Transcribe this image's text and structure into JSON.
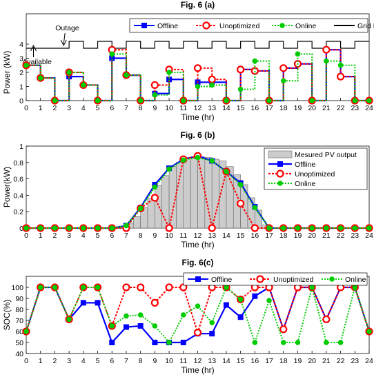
{
  "chart_data": [
    {
      "type": "line",
      "title": "Fig. 6 (a)",
      "xlabel": "Time (hr)",
      "ylabel": "Power (kW)",
      "xlim": [
        0,
        24
      ],
      "ylim": [
        0,
        4
      ],
      "xticks": [
        0,
        1,
        2,
        3,
        4,
        5,
        6,
        7,
        8,
        9,
        10,
        11,
        12,
        13,
        14,
        15,
        16,
        17,
        18,
        19,
        20,
        21,
        22,
        23,
        24
      ],
      "yticks": [
        0,
        1,
        2,
        3,
        4
      ],
      "legend_position": "top-right",
      "annotations": [
        {
          "text": "Outage",
          "x": 3.1
        },
        {
          "text": "Available",
          "x": 0.7
        }
      ],
      "series": [
        {
          "name": "Offline",
          "color": "#0000ff",
          "x": [
            0,
            1,
            2,
            3,
            4,
            5,
            6,
            7,
            8,
            9,
            10,
            11,
            12,
            13,
            14,
            15,
            16,
            17,
            18,
            19,
            20,
            21,
            22,
            23,
            24
          ],
          "values": [
            2.5,
            1.6,
            0,
            1.7,
            1.1,
            0,
            3.0,
            1.8,
            0,
            0.5,
            1.5,
            0,
            1.3,
            1.3,
            0,
            2.2,
            2.1,
            0,
            2.3,
            2.6,
            0,
            3.6,
            1.7,
            0,
            0
          ]
        },
        {
          "name": "Unoptimized",
          "color": "#ff0000",
          "x": [
            0,
            1,
            2,
            3,
            4,
            5,
            6,
            7,
            8,
            9,
            10,
            11,
            12,
            13,
            14,
            15,
            16,
            17,
            18,
            19,
            20,
            21,
            22,
            23,
            24
          ],
          "values": [
            2.5,
            1.6,
            0,
            2.0,
            1.1,
            0,
            3.6,
            1.8,
            0,
            1.1,
            2.2,
            0,
            2.3,
            1.5,
            0,
            2.2,
            2.1,
            0,
            2.3,
            2.6,
            0,
            3.6,
            1.7,
            0,
            0
          ]
        },
        {
          "name": "Online",
          "color": "#00cc00",
          "x": [
            0,
            1,
            2,
            3,
            4,
            5,
            6,
            7,
            8,
            9,
            10,
            11,
            12,
            13,
            14,
            15,
            16,
            17,
            18,
            19,
            20,
            21,
            22,
            23,
            24
          ],
          "values": [
            2.5,
            1.6,
            0,
            2.0,
            1.1,
            0,
            3.3,
            1.8,
            0,
            0.4,
            2.0,
            0,
            1.0,
            1.1,
            0,
            0.8,
            2.8,
            0,
            1.4,
            3.3,
            0,
            2.8,
            2.5,
            0,
            0
          ]
        }
      ],
      "grid_pattern": {
        "name": "Grid Pattern",
        "color": "#000000",
        "states": [
          0,
          0,
          0,
          1,
          0,
          1,
          0,
          1,
          0,
          1,
          0,
          1,
          0,
          1,
          0,
          1,
          0,
          1,
          0,
          1,
          0,
          1,
          0,
          1
        ]
      }
    },
    {
      "type": "line",
      "title": "Fig. 6 (b)",
      "xlabel": "Time (hr)",
      "ylabel": "Power(kW)",
      "xlim": [
        0,
        24
      ],
      "ylim": [
        0,
        1
      ],
      "xticks": [
        0,
        1,
        2,
        3,
        4,
        5,
        6,
        7,
        8,
        9,
        10,
        11,
        12,
        13,
        14,
        15,
        16,
        17,
        18,
        19,
        20,
        21,
        22,
        23,
        24
      ],
      "yticks": [
        0,
        0.2,
        0.4,
        0.6,
        0.8,
        1
      ],
      "legend_position": "top-right",
      "bars": {
        "name": "Mesured PV output",
        "color": "#cccccc",
        "x": [
          7,
          7.5,
          8,
          8.5,
          9,
          9.5,
          10,
          10.5,
          11,
          11.5,
          12,
          12.5,
          13,
          13.5,
          14,
          14.5,
          15,
          15.5,
          16,
          16.5
        ],
        "values": [
          0.06,
          0.14,
          0.25,
          0.36,
          0.52,
          0.64,
          0.75,
          0.8,
          0.82,
          0.85,
          0.87,
          0.86,
          0.84,
          0.82,
          0.75,
          0.65,
          0.53,
          0.37,
          0.22,
          0.04
        ]
      },
      "series": [
        {
          "name": "Offline",
          "color": "#0000ff",
          "x": [
            0,
            1,
            2,
            3,
            4,
            5,
            6,
            7,
            8,
            9,
            10,
            11,
            12,
            13,
            14,
            15,
            16,
            17,
            18,
            19,
            20,
            21,
            22,
            23,
            24
          ],
          "values": [
            0,
            0,
            0,
            0,
            0,
            0,
            0,
            0.03,
            0.25,
            0.53,
            0.73,
            0.84,
            0.88,
            0.82,
            0.69,
            0.55,
            0.26,
            0,
            0,
            0,
            0,
            0,
            0,
            0,
            0
          ]
        },
        {
          "name": "Unoptimized",
          "color": "#ff0000",
          "x": [
            0,
            1,
            2,
            3,
            4,
            5,
            6,
            7,
            8,
            9,
            10,
            11,
            12,
            13,
            14,
            15,
            16,
            17,
            18,
            19,
            20,
            21,
            22,
            23,
            24
          ],
          "values": [
            0,
            0,
            0,
            0,
            0,
            0,
            0,
            0,
            0.24,
            0.37,
            0,
            0.84,
            0.88,
            0,
            0.69,
            0.3,
            0,
            0,
            0,
            0,
            0,
            0,
            0,
            0,
            0
          ]
        },
        {
          "name": "Online",
          "color": "#00cc00",
          "x": [
            0,
            1,
            2,
            3,
            4,
            5,
            6,
            7,
            8,
            9,
            10,
            11,
            12,
            13,
            14,
            15,
            16,
            17,
            18,
            19,
            20,
            21,
            22,
            23,
            24
          ],
          "values": [
            0,
            0,
            0,
            0,
            0,
            0,
            0,
            0.03,
            0.24,
            0.5,
            0.72,
            0.83,
            0.86,
            0.82,
            0.69,
            0.53,
            0.25,
            0,
            0,
            0,
            0,
            0,
            0,
            0,
            0
          ]
        }
      ]
    },
    {
      "type": "line",
      "title": "Fig. 6(c)",
      "xlabel": "Time (hr)",
      "ylabel": "SOC(%)",
      "xlim": [
        0,
        24
      ],
      "ylim": [
        40,
        110
      ],
      "xticks": [
        0,
        1,
        2,
        3,
        4,
        5,
        6,
        7,
        8,
        9,
        10,
        11,
        12,
        13,
        14,
        15,
        16,
        17,
        18,
        19,
        20,
        21,
        22,
        23,
        24
      ],
      "yticks": [
        40,
        50,
        60,
        70,
        80,
        90,
        100
      ],
      "legend_position": "top",
      "series": [
        {
          "name": "Offline",
          "color": "#0000ff",
          "x": [
            0,
            1,
            2,
            3,
            4,
            5,
            6,
            7,
            8,
            9,
            10,
            11,
            12,
            13,
            14,
            15,
            16,
            17,
            18,
            19,
            20,
            21,
            22,
            23,
            24
          ],
          "values": [
            60,
            100,
            100,
            71,
            86,
            86,
            50,
            64,
            65,
            50,
            50,
            50,
            58,
            58,
            84,
            73,
            92,
            100,
            62,
            100,
            100,
            71,
            100,
            100,
            60
          ]
        },
        {
          "name": "Unoptimized",
          "color": "#ff0000",
          "x": [
            0,
            1,
            2,
            3,
            4,
            5,
            6,
            7,
            8,
            9,
            10,
            11,
            12,
            13,
            14,
            15,
            16,
            17,
            18,
            19,
            20,
            21,
            22,
            23,
            24
          ],
          "values": [
            60,
            100,
            100,
            71,
            100,
            100,
            65,
            100,
            100,
            86,
            100,
            100,
            59,
            100,
            100,
            89,
            100,
            100,
            62,
            100,
            100,
            71,
            100,
            100,
            60
          ]
        },
        {
          "name": "Online",
          "color": "#00cc00",
          "x": [
            0,
            1,
            2,
            3,
            4,
            5,
            6,
            7,
            8,
            9,
            10,
            11,
            12,
            13,
            14,
            15,
            16,
            17,
            18,
            19,
            20,
            21,
            22,
            23,
            24
          ],
          "values": [
            60,
            100,
            100,
            71,
            100,
            100,
            65,
            74,
            75,
            65,
            50,
            75,
            83,
            68,
            100,
            89,
            50,
            88,
            50,
            50,
            100,
            50,
            50,
            100,
            60
          ]
        }
      ]
    }
  ]
}
